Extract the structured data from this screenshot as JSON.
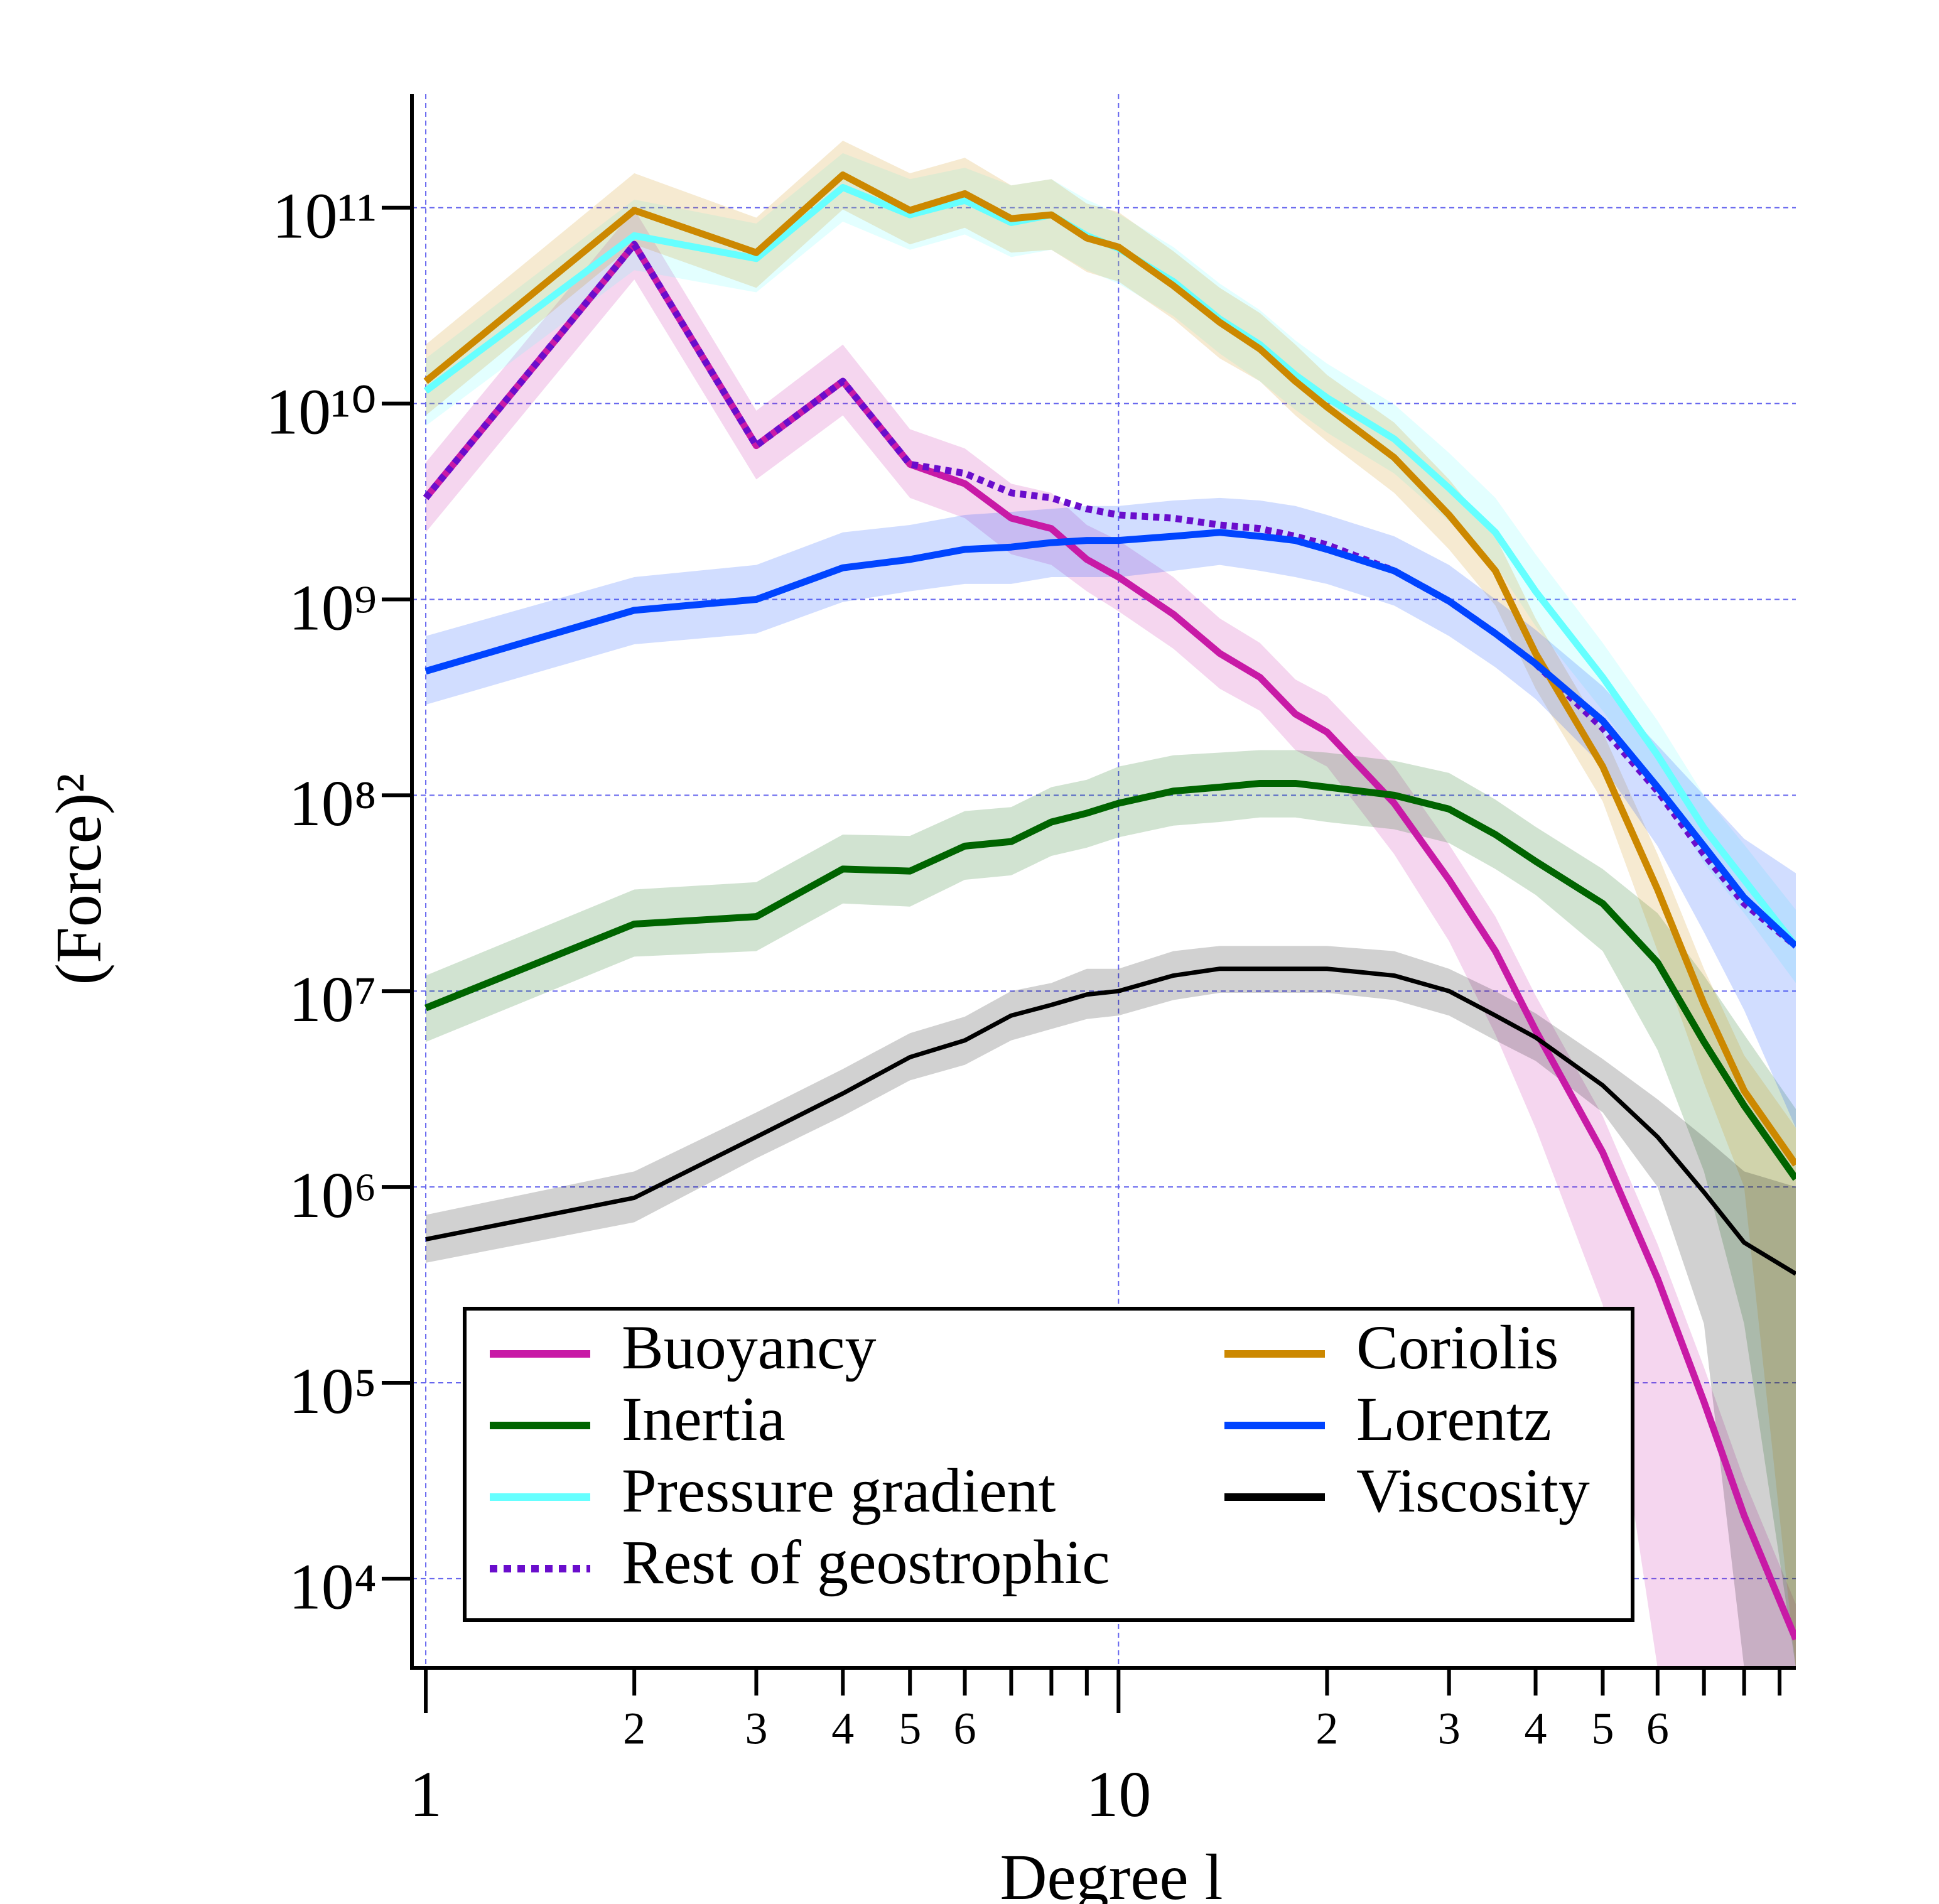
{
  "chart_data": {
    "type": "line",
    "xlabel": "Degree l",
    "ylabel": "(Force)²",
    "xscale": "log",
    "yscale": "log",
    "grid": true,
    "xlim": [
      0.955,
      95
    ],
    "ylim": [
      3500,
      380000000000
    ],
    "xticks": [
      1,
      2,
      3,
      4,
      5,
      6,
      10,
      {
        "value": 20,
        "label": "2"
      },
      {
        "value": 30,
        "label": "3"
      },
      {
        "value": 40,
        "label": "4"
      },
      {
        "value": 50,
        "label": "5"
      },
      {
        "value": 60,
        "label": "6"
      }
    ],
    "xminorticks": [
      7,
      8,
      9,
      70,
      80,
      90
    ],
    "yticks": [
      {
        "value": 10000,
        "label": "10⁴"
      },
      {
        "value": 100000,
        "label": "10⁵"
      },
      {
        "value": 1000000,
        "label": "10⁶"
      },
      {
        "value": 10000000,
        "label": "10⁷"
      },
      {
        "value": 100000000,
        "label": "10⁸"
      },
      {
        "value": 1000000000,
        "label": "10⁹"
      },
      {
        "value": 10000000000,
        "label": "10¹⁰"
      },
      {
        "value": 100000000000,
        "label": "10¹¹"
      }
    ],
    "legend": {
      "loc": "lower left",
      "ncol": 2
    },
    "x": [
      1,
      2,
      3,
      4,
      5,
      6,
      7,
      8,
      9,
      10,
      12,
      14,
      16,
      18,
      20,
      25,
      30,
      35,
      40,
      50,
      60,
      70,
      80,
      95
    ],
    "series": [
      {
        "name": "Buoyancy",
        "color": "#c81aa6",
        "linestyle": "solid",
        "values": [
          3300000000.0,
          65000000000.0,
          6100000000.0,
          13000000000.0,
          4900000000.0,
          3900000000.0,
          2600000000.0,
          2300000000.0,
          1600000000.0,
          1300000000.0,
          840000000.0,
          530000000.0,
          400000000.0,
          260000000.0,
          210000000.0,
          91000000.0,
          37000000.0,
          16000000.0,
          6300000.0,
          1500000.0,
          340000.0,
          80000.0,
          21000.0,
          4900
        ],
        "lower": [
          2200000000.0,
          43000000000.0,
          4100000000.0,
          8700000000.0,
          3300000000.0,
          2600000000.0,
          1700000000.0,
          1500000000.0,
          1100000000.0,
          870000000.0,
          560000000.0,
          350000000.0,
          270000000.0,
          170000000.0,
          140000000.0,
          50000000.0,
          18000000.0,
          6000000.0,
          2000000.0,
          250000.0,
          3500,
          3500,
          3500,
          3500
        ],
        "upper": [
          5000000000.0,
          98000000000.0,
          9200000000.0,
          20000000000.0,
          7400000000.0,
          5900000000.0,
          3900000000.0,
          3500000000.0,
          2400000000.0,
          2000000000.0,
          1300000000.0,
          800000000.0,
          600000000.0,
          390000000.0,
          320000000.0,
          140000000.0,
          56000000.0,
          24000000.0,
          9500000.0,
          2300000.0,
          510000.0,
          120000.0,
          32000.0,
          7400
        ]
      },
      {
        "name": "Inertia",
        "color": "#006400",
        "linestyle": "solid",
        "values": [
          8200000.0,
          22000000.0,
          24000000.0,
          42000000.0,
          41000000.0,
          55000000.0,
          58000000.0,
          73000000.0,
          81000000.0,
          91000000.0,
          105000000.0,
          110000000.0,
          115000000.0,
          115000000.0,
          110000000.0,
          100000000.0,
          85000000.0,
          63000000.0,
          46000000.0,
          28000000.0,
          14000000.0,
          5500000.0,
          2600000.0,
          1100000.0
        ],
        "lower": [
          5500000.0,
          15000000.0,
          16000000.0,
          28000000.0,
          27000000.0,
          37000000.0,
          39000000.0,
          49000000.0,
          54000000.0,
          61000000.0,
          70000000.0,
          73000000.0,
          77000000.0,
          77000000.0,
          73000000.0,
          67000000.0,
          57000000.0,
          42000000.0,
          31000000.0,
          16000000.0,
          5000000.0,
          1200000.0,
          200000.0,
          3500
        ],
        "upper": [
          12000000.0,
          33000000.0,
          36000000.0,
          63000000.0,
          62000000.0,
          83000000.0,
          87000000.0,
          110000000.0,
          120000000.0,
          140000000.0,
          160000000.0,
          165000000.0,
          170000000.0,
          170000000.0,
          165000000.0,
          150000000.0,
          130000000.0,
          95000000.0,
          69000000.0,
          42000000.0,
          25000000.0,
          12000000.0,
          6000000.0,
          2500000.0
        ]
      },
      {
        "name": "Pressure gradient",
        "color": "#66ffff",
        "linestyle": "solid",
        "values": [
          11600000000.0,
          72000000000.0,
          55000000000.0,
          127000000000.0,
          92000000000.0,
          109000000000.0,
          84000000000.0,
          92000000000.0,
          72000000000.0,
          62000000000.0,
          42000000000.0,
          27000000000.0,
          20000000000.0,
          14000000000.0,
          10700000000.0,
          6600000000.0,
          3700000000.0,
          2200000000.0,
          1100000000.0,
          400000000.0,
          160000000.0,
          68000000.0,
          37000000.0,
          17000000.0
        ],
        "lower": [
          7700000000.0,
          48000000000.0,
          37000000000.0,
          85000000000.0,
          61000000000.0,
          73000000000.0,
          56000000000.0,
          61000000000.0,
          48000000000.0,
          41000000000.0,
          28000000000.0,
          18000000000.0,
          13000000000.0,
          9300000000.0,
          7100000000.0,
          4400000000.0,
          2500000000.0,
          1500000000.0,
          730000000.0,
          270000000.0,
          110000000.0,
          45000000.0,
          25000000.0,
          11000000.0
        ],
        "upper": [
          17000000000.0,
          110000000000.0,
          83000000000.0,
          190000000000.0,
          140000000000.0,
          160000000000.0,
          130000000000.0,
          140000000000.0,
          110000000000.0,
          93000000000.0,
          63000000000.0,
          41000000000.0,
          30000000000.0,
          21000000000.0,
          16000000000.0,
          9900000000.0,
          5600000000.0,
          3300000000.0,
          1700000000.0,
          600000000.0,
          240000000.0,
          100000000.0,
          56000000.0,
          26000000.0
        ]
      },
      {
        "name": "Rest of geostrophic",
        "color": "#6a0dcc",
        "linestyle": "dotted",
        "values": [
          3300000000.0,
          65000000000.0,
          6100000000.0,
          13000000000.0,
          4900000000.0,
          4400000000.0,
          3500000000.0,
          3300000000.0,
          2900000000.0,
          2700000000.0,
          2600000000.0,
          2400000000.0,
          2300000000.0,
          2100000000.0,
          1900000000.0,
          1400000000.0,
          980000000.0,
          670000000.0,
          470000000.0,
          220000000.0,
          105000000.0,
          50000000.0,
          28000000.0,
          17000000.0
        ]
      },
      {
        "name": "Coriolis",
        "color": "#cc8800",
        "linestyle": "solid",
        "values": [
          13000000000.0,
          97000000000.0,
          59000000000.0,
          147000000000.0,
          97000000000.0,
          118000000000.0,
          88000000000.0,
          92000000000.0,
          70000000000.0,
          63000000000.0,
          40000000000.0,
          26000000000.0,
          19000000000.0,
          13000000000.0,
          9600000000.0,
          5300000000.0,
          2700000000.0,
          1400000000.0,
          530000000.0,
          140000000.0,
          33000000.0,
          8600000.0,
          3100000.0,
          1300000.0
        ],
        "lower": [
          8700000000.0,
          65000000000.0,
          39000000000.0,
          98000000000.0,
          65000000000.0,
          79000000000.0,
          59000000000.0,
          61000000000.0,
          47000000000.0,
          42000000000.0,
          27000000000.0,
          17000000000.0,
          13000000000.0,
          8700000000.0,
          6400000000.0,
          3500000000.0,
          1800000000.0,
          930000000.0,
          350000000.0,
          93000000.0,
          16000000.0,
          3400000.0,
          1000000.0,
          3500
        ],
        "upper": [
          20000000000.0,
          150000000000.0,
          89000000000.0,
          220000000000.0,
          150000000000.0,
          180000000000.0,
          130000000000.0,
          140000000000.0,
          105000000000.0,
          95000000000.0,
          60000000000.0,
          39000000000.0,
          29000000000.0,
          20000000000.0,
          14000000000.0,
          8000000000.0,
          4100000000.0,
          2100000000.0,
          800000000.0,
          210000000.0,
          50000000.0,
          13000000.0,
          4700000.0,
          2000000.0
        ]
      },
      {
        "name": "Lorentz",
        "color": "#0044ff",
        "linestyle": "solid",
        "values": [
          430000000.0,
          880000000.0,
          1000000000.0,
          1450000000.0,
          1600000000.0,
          1800000000.0,
          1850000000.0,
          1950000000.0,
          2000000000.0,
          2000000000.0,
          2100000000.0,
          2200000000.0,
          2100000000.0,
          2000000000.0,
          1800000000.0,
          1400000000.0,
          980000000.0,
          670000000.0,
          470000000.0,
          240000000.0,
          110000000.0,
          55000000.0,
          30000000.0,
          17000000.0
        ],
        "lower": [
          290000000.0,
          590000000.0,
          670000000.0,
          970000000.0,
          1100000000.0,
          1200000000.0,
          1200000000.0,
          1300000000.0,
          1300000000.0,
          1300000000.0,
          1400000000.0,
          1500000000.0,
          1400000000.0,
          1300000000.0,
          1200000000.0,
          930000000.0,
          650000000.0,
          450000000.0,
          310000000.0,
          140000000.0,
          55000000.0,
          20000000.0,
          8000000.0,
          2000000.0
        ],
        "upper": [
          650000000.0,
          1300000000.0,
          1500000000.0,
          2200000000.0,
          2400000000.0,
          2700000000.0,
          2800000000.0,
          2900000000.0,
          3000000000.0,
          3000000000.0,
          3200000000.0,
          3300000000.0,
          3200000000.0,
          3000000000.0,
          2700000000.0,
          2100000000.0,
          1500000000.0,
          1000000000.0,
          700000000.0,
          360000000.0,
          180000000.0,
          100000000.0,
          60000000.0,
          40000000.0
        ]
      },
      {
        "name": "Viscosity",
        "color": "#000000",
        "linestyle": "solid",
        "values": [
          540000.0,
          880000.0,
          1800000.0,
          3000000.0,
          4600000.0,
          5600000.0,
          7500000.0,
          8500000.0,
          9600000.0,
          10000000.0,
          12000000.0,
          13000000.0,
          13000000.0,
          13000000.0,
          13000000.0,
          12000000.0,
          10000000.0,
          7500000.0,
          5800000.0,
          3300000.0,
          1800000.0,
          940000.0,
          520000.0,
          360000.0
        ],
        "lower": [
          410000.0,
          660000.0,
          1400000.0,
          2300000.0,
          3500000.0,
          4200000.0,
          5600000.0,
          6400000.0,
          7200000.0,
          7500000.0,
          9000000.0,
          9800000.0,
          9800000.0,
          9800000.0,
          9800000.0,
          9000000.0,
          7500000.0,
          5600000.0,
          4400000.0,
          2400000.0,
          1000000.0,
          200000.0,
          3500,
          3500
        ],
        "upper": [
          720000.0,
          1200000.0,
          2400000.0,
          4000000.0,
          6100000.0,
          7400000.0,
          10000000.0,
          11000000.0,
          13000000.0,
          13000000.0,
          16000000.0,
          17000000.0,
          17000000.0,
          17000000.0,
          17000000.0,
          16000000.0,
          13000000.0,
          10000000.0,
          7700000.0,
          4500000.0,
          2800000.0,
          1800000.0,
          1200000.0,
          1000000.0
        ]
      }
    ]
  }
}
